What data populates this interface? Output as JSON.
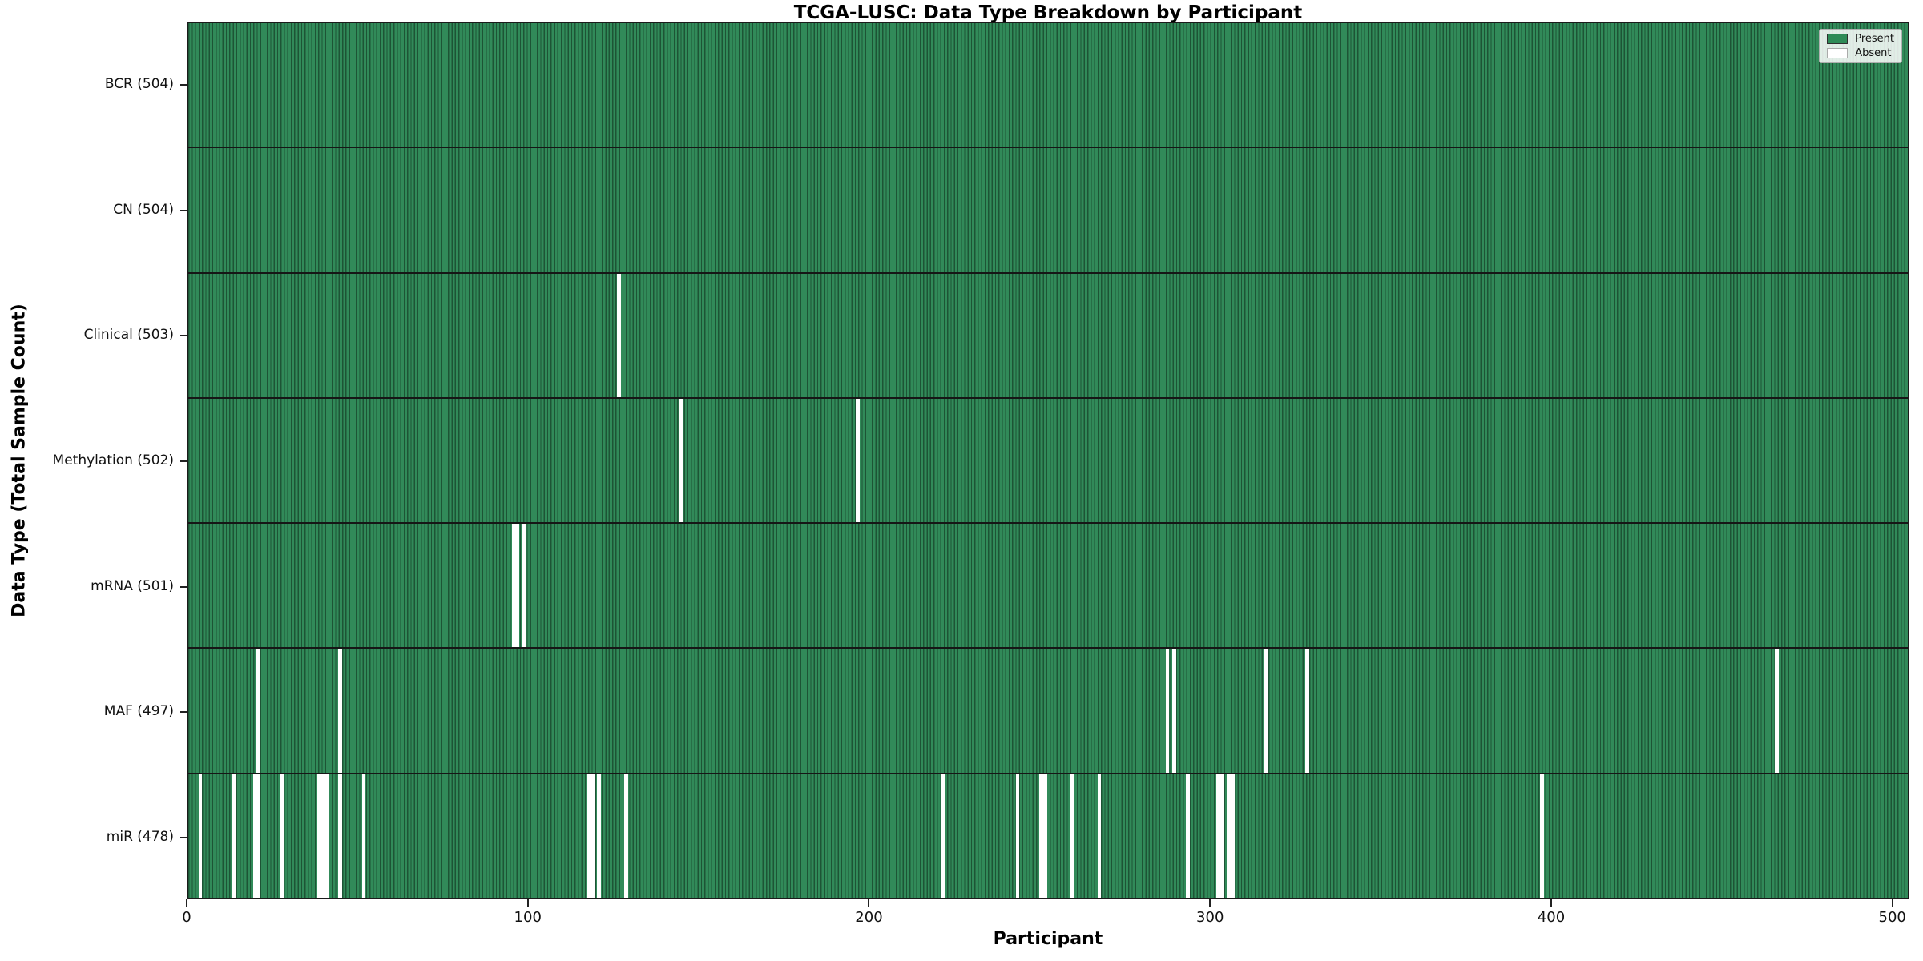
{
  "chart_data": {
    "type": "heatmap",
    "title": "TCGA-LUSC: Data Type Breakdown by Participant",
    "xlabel": "Participant",
    "ylabel": "Data Type (Total Sample Count)",
    "x_ticks": [
      0,
      100,
      200,
      300,
      400,
      500
    ],
    "x_lim": [
      0,
      505
    ],
    "grid": false,
    "legend_position": "upper right",
    "legend": [
      {
        "label": "Present",
        "color": "#2e8b57"
      },
      {
        "label": "Absent",
        "color": "#ffffff"
      }
    ],
    "colors": {
      "present": "#318a59",
      "bar_edge": "#1d5435",
      "absent": "#ffffff"
    },
    "rows": [
      {
        "label": "BCR (504)",
        "data_type": "BCR",
        "total": 504,
        "absent_participants": []
      },
      {
        "label": "CN (504)",
        "data_type": "CN",
        "total": 504,
        "absent_participants": []
      },
      {
        "label": "Clinical (503)",
        "data_type": "Clinical",
        "total": 503,
        "absent_participants": [
          126
        ]
      },
      {
        "label": "Methylation (502)",
        "data_type": "Methylation",
        "total": 502,
        "absent_participants": [
          144,
          196
        ]
      },
      {
        "label": "mRNA (501)",
        "data_type": "mRNA",
        "total": 501,
        "absent_participants": [
          95,
          96,
          98
        ]
      },
      {
        "label": "MAF (497)",
        "data_type": "MAF",
        "total": 497,
        "absent_participants": [
          20,
          44,
          287,
          289,
          316,
          328,
          466
        ]
      },
      {
        "label": "miR (478)",
        "data_type": "miR",
        "total": 478,
        "absent_participants": [
          3,
          13,
          19,
          20,
          27,
          38,
          39,
          40,
          44,
          51,
          117,
          118,
          120,
          128,
          221,
          243,
          250,
          251,
          259,
          267,
          293,
          302,
          303,
          305,
          306,
          397
        ]
      }
    ]
  }
}
